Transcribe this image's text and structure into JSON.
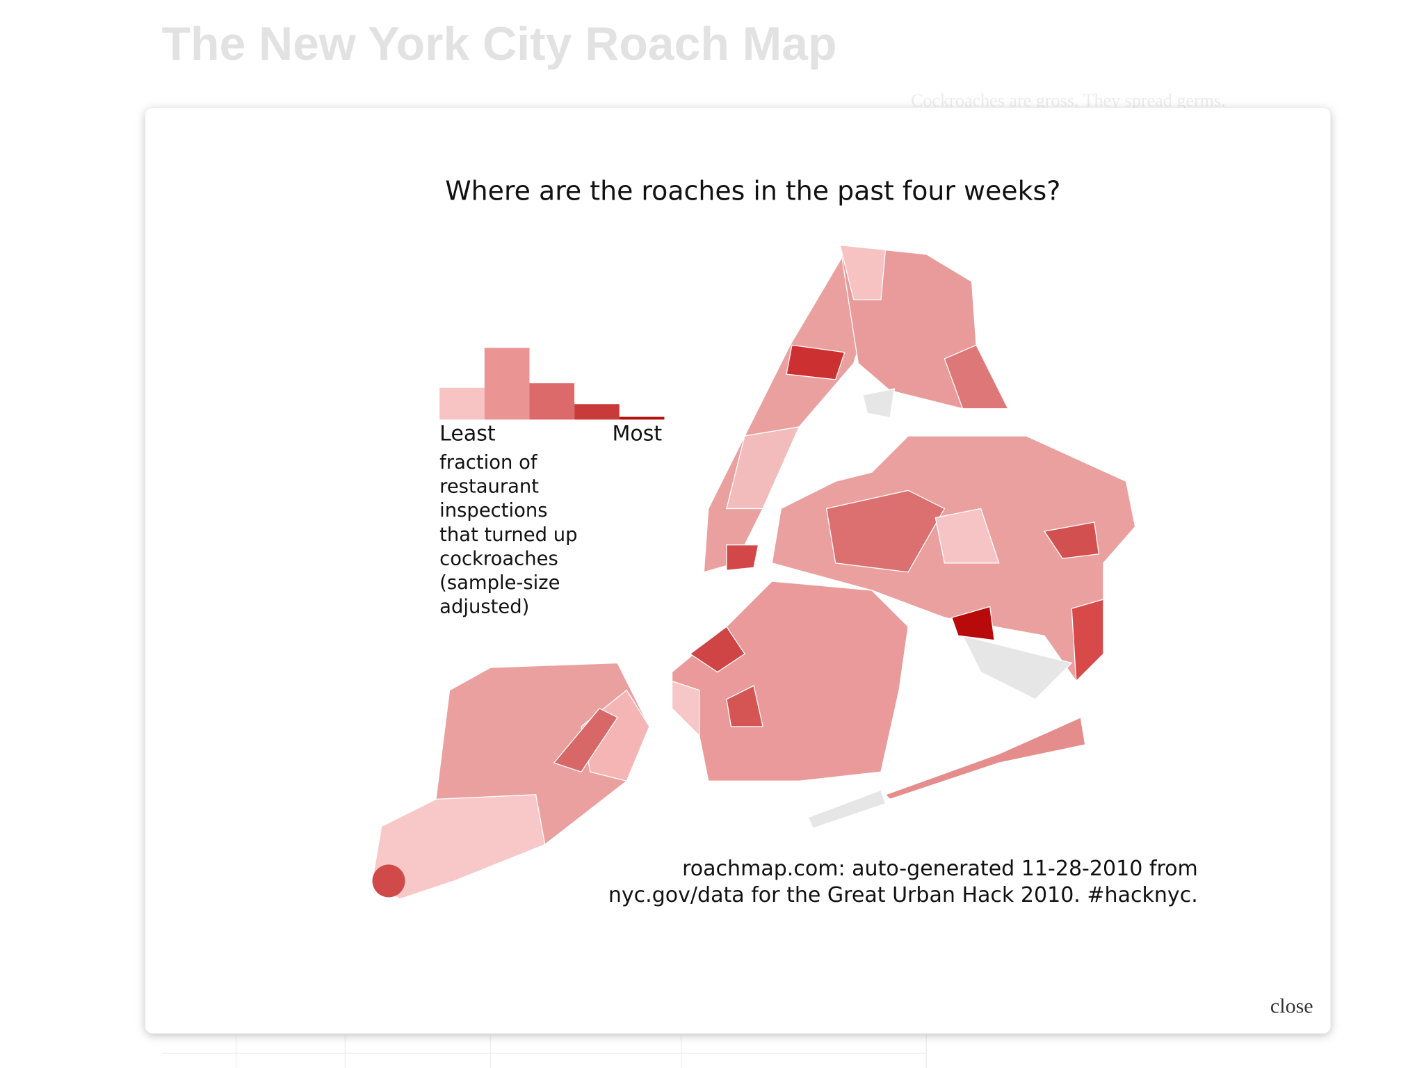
{
  "page": {
    "title": "The New York City Roach Map",
    "intro": "Cockroaches are gross. They spread germs."
  },
  "modal": {
    "title": "Where are the roaches in the past four weeks?",
    "legend": {
      "histogram": {
        "values": [
          35,
          79,
          40,
          17,
          3
        ],
        "colors": [
          "#f7c3c3",
          "#eb9494",
          "#dd6a6a",
          "#c93a3a",
          "#b50e0e"
        ]
      },
      "low_label": "Least",
      "high_label": "Most",
      "description": [
        "fraction of",
        "restaurant",
        "inspections",
        "that turned up",
        "cockroaches",
        "(sample-size",
        "adjusted)"
      ]
    },
    "credit": [
      "roachmap.com: auto-generated 11-28-2010 from",
      "nyc.gov/data for the Great Urban Hack 2010. #hacknyc."
    ],
    "close": "close"
  }
}
